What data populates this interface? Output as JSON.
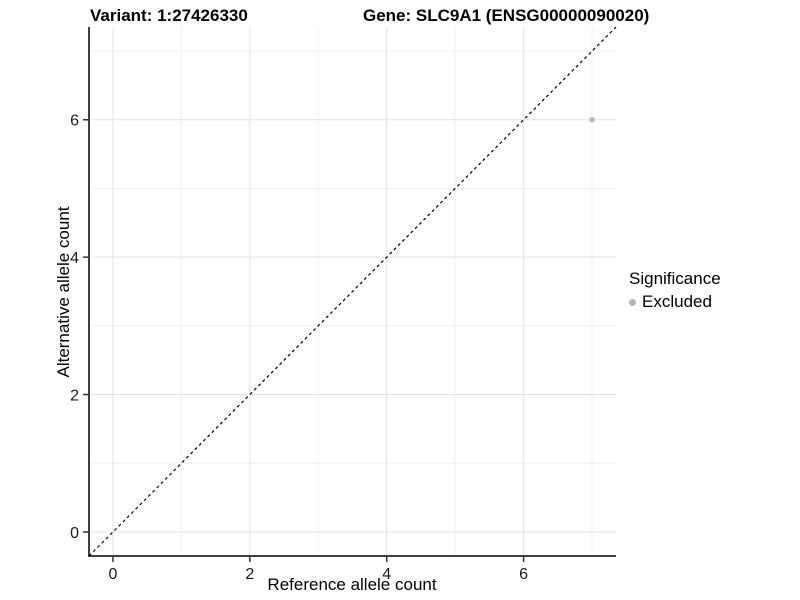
{
  "titles": {
    "variant": "Variant: 1:27426330",
    "gene": "Gene: SLC9A1 (ENSG00000090020)"
  },
  "legend": {
    "title": "Significance",
    "entries": [
      {
        "label": "Excluded",
        "color": "#b5b5b5"
      }
    ]
  },
  "colors": {
    "background": "#ffffff",
    "grid_major": "#e2e2e2",
    "grid_minor": "#f0f0f0",
    "axis_line": "#3f3f3f",
    "tick_mark": "#333333",
    "tick_text": "#1a1a1a",
    "point": "#b5b5b5",
    "reference_line": "#000000"
  },
  "chart_data": {
    "type": "scatter",
    "title": "Variant: 1:27426330 — Gene: SLC9A1 (ENSG00000090020)",
    "xlabel": "Reference allele count",
    "ylabel": "Alternative allele count",
    "xlim": [
      -0.35,
      7.35
    ],
    "ylim": [
      -0.35,
      7.35
    ],
    "x_ticks": [
      0,
      2,
      4,
      6
    ],
    "y_ticks": [
      0,
      2,
      4,
      6
    ],
    "x_minor_gridlines": [
      1,
      3,
      5,
      7
    ],
    "y_minor_gridlines": [
      1,
      3,
      5,
      7
    ],
    "grid": "major+minor, light gray on white",
    "legend_position": "right",
    "series": [
      {
        "name": "Excluded",
        "color": "#b5b5b5",
        "points": [
          {
            "x": 7,
            "y": 6
          }
        ]
      }
    ],
    "reference_line": {
      "type": "abline",
      "slope": 1,
      "intercept": 0,
      "style": "dashed",
      "color": "#000000"
    }
  }
}
